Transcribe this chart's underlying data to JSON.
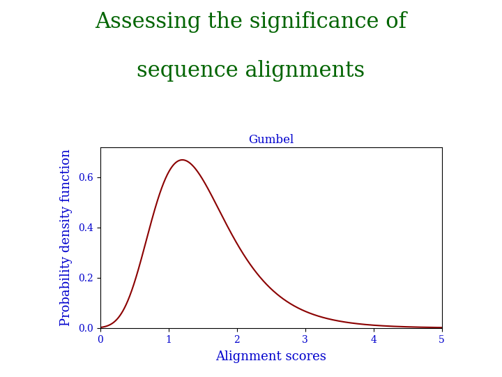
{
  "title_line1": "Assessing the significance of",
  "title_line2": "sequence alignments",
  "title_color": "#006400",
  "title_fontsize": 22,
  "plot_title": "Gumbel",
  "plot_title_color": "#0000CD",
  "plot_title_fontsize": 12,
  "xlabel": "Alignment scores",
  "ylabel": "Probability density function",
  "label_color": "#0000CD",
  "label_fontsize": 13,
  "tick_label_color": "#0000CD",
  "tick_label_fontsize": 10,
  "curve_color": "#8B0000",
  "curve_linewidth": 1.5,
  "xlim": [
    0,
    5
  ],
  "ylim": [
    0.0,
    0.72
  ],
  "xticks": [
    0,
    1,
    2,
    3,
    4,
    5
  ],
  "yticks": [
    0.0,
    0.2,
    0.4,
    0.6
  ],
  "gumbel_mu": 1.2,
  "gumbel_beta": 0.55,
  "background_color": "#ffffff",
  "axes_background": "#ffffff"
}
